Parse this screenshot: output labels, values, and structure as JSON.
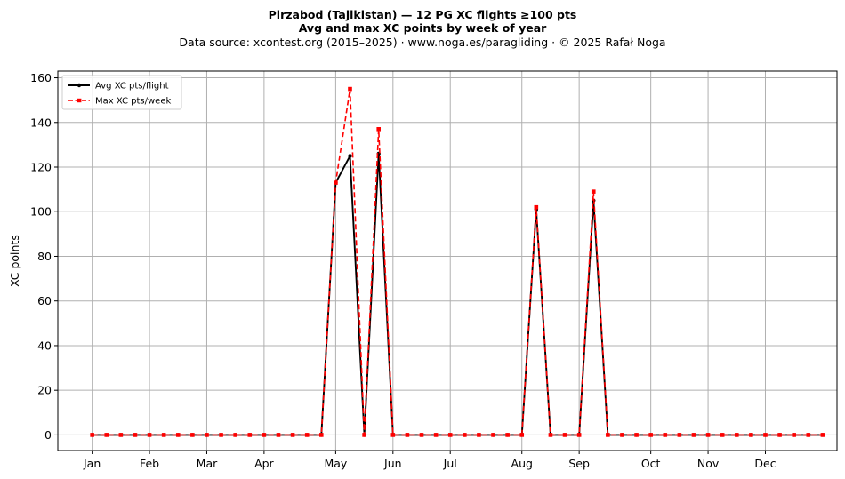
{
  "chart_data": {
    "type": "line",
    "title": "Pirzabod (Tajikistan)  —  12 PG XC flights ≥100 pts",
    "subtitle": "Avg and max XC points by week of year",
    "source": "Data source: xcontest.org (2015–2025)  ·  www.noga.es/paragliding  ·  © 2025 Rafał Noga",
    "xlabel": "",
    "ylabel": "XC points",
    "ylim": [
      -7,
      163
    ],
    "yticks": [
      0,
      20,
      40,
      60,
      80,
      100,
      120,
      140,
      160
    ],
    "xlim": [
      -1.4,
      53.0
    ],
    "month_ticks": [
      {
        "label": "Jan",
        "week": 1
      },
      {
        "label": "Feb",
        "week": 5
      },
      {
        "label": "Mar",
        "week": 9
      },
      {
        "label": "Apr",
        "week": 13
      },
      {
        "label": "May",
        "week": 18
      },
      {
        "label": "Jun",
        "week": 22
      },
      {
        "label": "Jul",
        "week": 26
      },
      {
        "label": "Aug",
        "week": 31
      },
      {
        "label": "Sep",
        "week": 35
      },
      {
        "label": "Oct",
        "week": 40
      },
      {
        "label": "Nov",
        "week": 44
      },
      {
        "label": "Dec",
        "week": 48
      }
    ],
    "grid": true,
    "legend_position": "upper-left",
    "x": [
      1,
      2,
      3,
      4,
      5,
      6,
      7,
      8,
      9,
      10,
      11,
      12,
      13,
      14,
      15,
      16,
      17,
      18,
      19,
      20,
      21,
      22,
      23,
      24,
      25,
      26,
      27,
      28,
      29,
      30,
      31,
      32,
      33,
      34,
      35,
      36,
      37,
      38,
      39,
      40,
      41,
      42,
      43,
      44,
      45,
      46,
      47,
      48,
      49,
      50,
      51,
      52
    ],
    "series": [
      {
        "name": "Avg XC pts/flight",
        "color": "#000000",
        "style": "solid",
        "marker": "circle",
        "values": [
          0,
          0,
          0,
          0,
          0,
          0,
          0,
          0,
          0,
          0,
          0,
          0,
          0,
          0,
          0,
          0,
          0,
          113,
          125,
          0,
          126,
          0,
          0,
          0,
          0,
          0,
          0,
          0,
          0,
          0,
          0,
          101,
          0,
          0,
          0,
          105,
          0,
          0,
          0,
          0,
          0,
          0,
          0,
          0,
          0,
          0,
          0,
          0,
          0,
          0,
          0,
          0
        ]
      },
      {
        "name": "Max XC pts/week",
        "color": "#ff0000",
        "style": "dashed",
        "marker": "square",
        "values": [
          0,
          0,
          0,
          0,
          0,
          0,
          0,
          0,
          0,
          0,
          0,
          0,
          0,
          0,
          0,
          0,
          0,
          113,
          155,
          0,
          137,
          0,
          0,
          0,
          0,
          0,
          0,
          0,
          0,
          0,
          0,
          102,
          0,
          0,
          0,
          109,
          0,
          0,
          0,
          0,
          0,
          0,
          0,
          0,
          0,
          0,
          0,
          0,
          0,
          0,
          0,
          0
        ]
      }
    ]
  }
}
